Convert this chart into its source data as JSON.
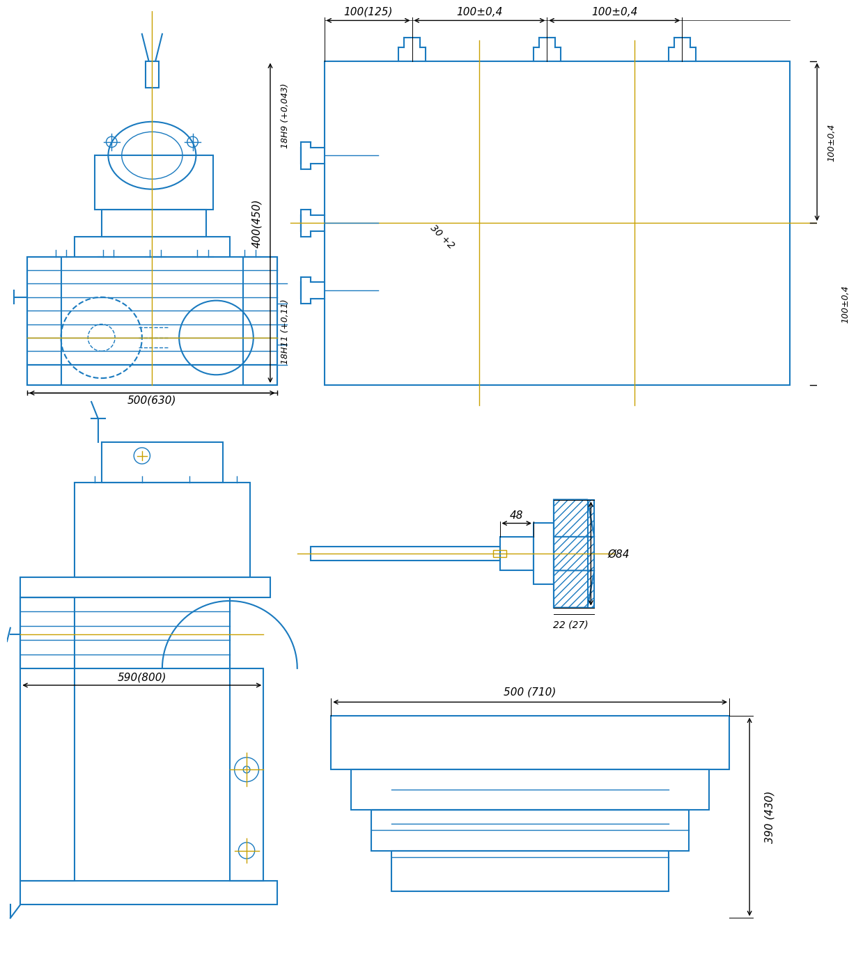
{
  "bg_color": "#ffffff",
  "line_color": "#1a7abf",
  "dim_color": "#000000",
  "centerline_color": "#c8a000",
  "hatch_color": "#1a7abf",
  "title": "",
  "dimensions": {
    "top_view_width": "100(125)",
    "top_view_spacing1": "100±0,4",
    "top_view_spacing2": "100±0,4",
    "top_view_height": "400(450)",
    "top_view_h9": "18H9 (+0,043)",
    "top_view_h11": "18H11 (+0,11)",
    "top_view_slot": "30 +2",
    "top_view_right1": "100±0,4",
    "top_view_right2": "100±0,4",
    "front_width": "500(630)",
    "side_width": "590(800)",
    "spindle_dim1": "48",
    "spindle_dim2": "Ø84",
    "spindle_dim3": "22 (27)",
    "table_width": "500 (710)",
    "table_height": "390 (430)"
  }
}
